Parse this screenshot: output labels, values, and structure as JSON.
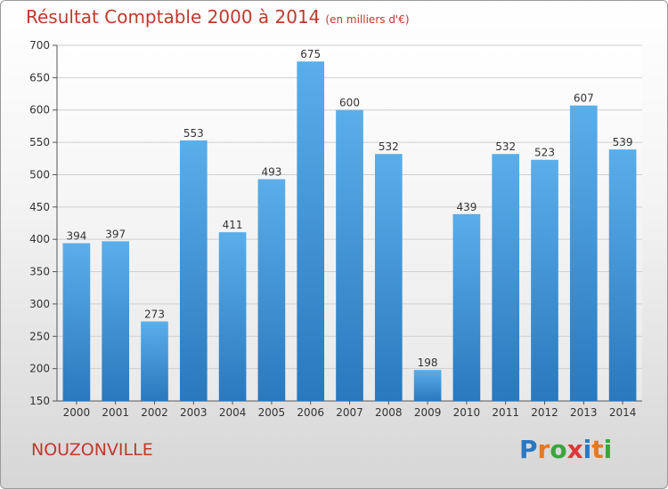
{
  "title": "Résultat Comptable 2000 à 2014",
  "unit": "(en milliers d'€)",
  "commune": "NOUZONVILLE",
  "logo": {
    "text": "Proxiti",
    "letters": [
      "P",
      "r",
      "o",
      "x",
      "i",
      "t",
      "i"
    ],
    "colors": [
      "#2a78c4",
      "#e8781e",
      "#3aa53a",
      "#d93a3a",
      "#2a78c4",
      "#e8781e",
      "#3aa53a"
    ]
  },
  "chart_data": {
    "type": "bar",
    "title": "Résultat Comptable 2000 à 2014",
    "xlabel": "",
    "ylabel": "",
    "categories": [
      "2000",
      "2001",
      "2002",
      "2003",
      "2004",
      "2005",
      "2006",
      "2007",
      "2008",
      "2009",
      "2010",
      "2011",
      "2012",
      "2013",
      "2014"
    ],
    "values": [
      394,
      397,
      273,
      553,
      411,
      493,
      675,
      600,
      532,
      198,
      439,
      532,
      523,
      607,
      539
    ],
    "ylim": [
      150,
      700
    ],
    "yticks": [
      150,
      200,
      250,
      300,
      350,
      400,
      450,
      500,
      550,
      600,
      650,
      700
    ],
    "grid": true,
    "bar_color": "#3d8fd6"
  }
}
